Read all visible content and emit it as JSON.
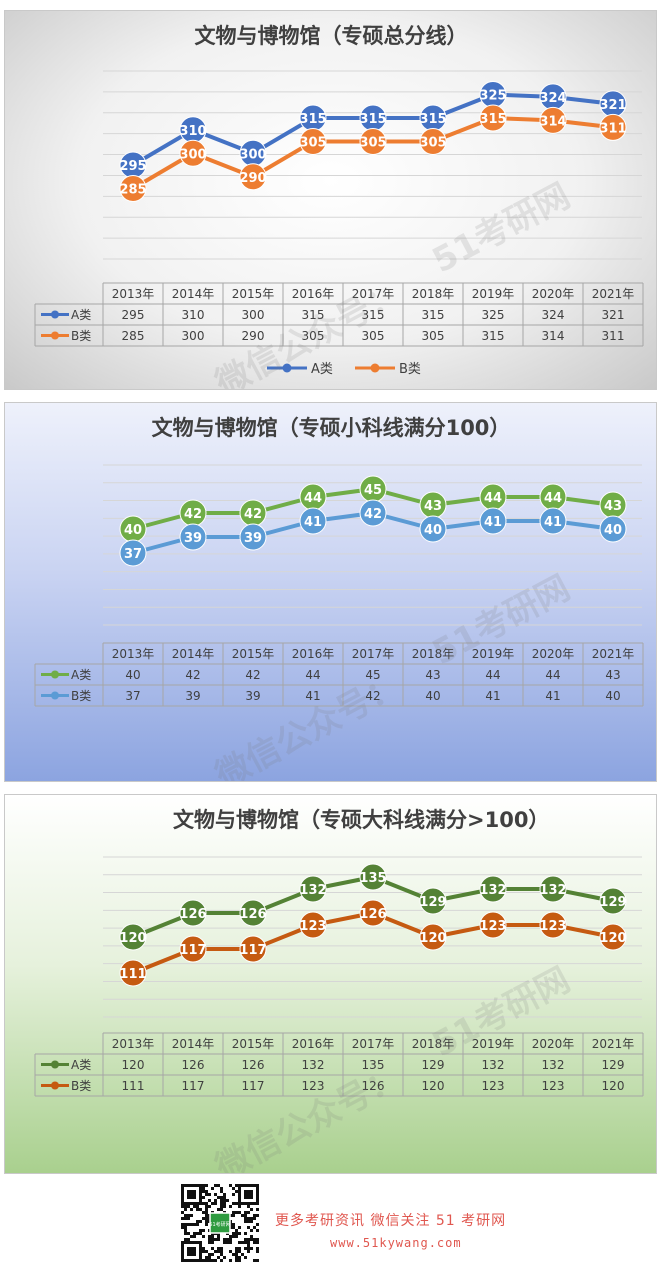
{
  "chart_data": [
    {
      "type": "line",
      "title": "文物与博物馆（专硕总分线）",
      "categories": [
        "2013年",
        "2014年",
        "2015年",
        "2016年",
        "2017年",
        "2018年",
        "2019年",
        "2020年",
        "2021年"
      ],
      "ylim": [
        255,
        335
      ],
      "legend": "bottom",
      "series": [
        {
          "name": "A类",
          "color": "#4472c4",
          "values": [
            295,
            310,
            300,
            315,
            315,
            315,
            325,
            324,
            321
          ]
        },
        {
          "name": "B类",
          "color": "#ed7d31",
          "values": [
            285,
            300,
            290,
            305,
            305,
            305,
            315,
            314,
            311
          ]
        }
      ]
    },
    {
      "type": "line",
      "title": "文物与博物馆（专硕小科线满分100）",
      "categories": [
        "2013年",
        "2014年",
        "2015年",
        "2016年",
        "2017年",
        "2018年",
        "2019年",
        "2020年",
        "2021年"
      ],
      "ylim": [
        28,
        48
      ],
      "series": [
        {
          "name": "A类",
          "color": "#70ad47",
          "values": [
            40,
            42,
            42,
            44,
            45,
            43,
            44,
            44,
            43
          ]
        },
        {
          "name": "B类",
          "color": "#5b9bd5",
          "values": [
            37,
            39,
            39,
            41,
            42,
            40,
            41,
            41,
            40
          ]
        }
      ]
    },
    {
      "type": "line",
      "title": "文物与博物馆（专硕大科线满分>100）",
      "categories": [
        "2013年",
        "2014年",
        "2015年",
        "2016年",
        "2017年",
        "2018年",
        "2019年",
        "2020年",
        "2021年"
      ],
      "ylim": [
        100,
        140
      ],
      "series": [
        {
          "name": "A类",
          "color": "#548235",
          "values": [
            120,
            126,
            126,
            132,
            135,
            129,
            132,
            132,
            129
          ]
        },
        {
          "name": "B类",
          "color": "#c55a11",
          "values": [
            111,
            117,
            117,
            123,
            126,
            120,
            123,
            123,
            120
          ]
        }
      ]
    }
  ],
  "watermark": {
    "line1": "51考研网",
    "line2": "微信公众号："
  },
  "footer": {
    "text": "更多考研资讯 微信关注 51 考研网",
    "url": "www.51kywang.com",
    "qr_badge": "51考研网"
  }
}
